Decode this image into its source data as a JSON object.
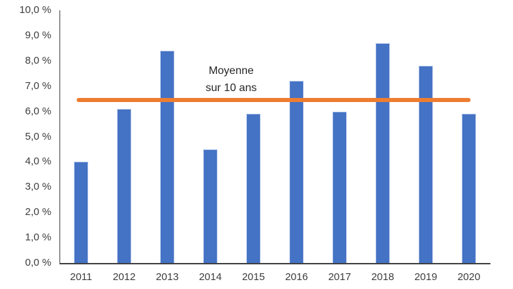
{
  "colors": {
    "background": "#ffffff",
    "bar_fill": "#4472C4",
    "bar_edge": "#bdcdee",
    "reference_line": "#ED7D31",
    "axis_line": "#404040",
    "tick_text": "#3d3d3d",
    "annotation_text": "#262626"
  },
  "annotation": {
    "line1": "Moyenne",
    "line2": "sur 10 ans"
  },
  "chart_data": {
    "type": "bar",
    "title": "",
    "xlabel": "",
    "ylabel": "",
    "categories": [
      "2011",
      "2012",
      "2013",
      "2014",
      "2015",
      "2016",
      "2017",
      "2018",
      "2019",
      "2020"
    ],
    "values": [
      4.0,
      6.1,
      8.4,
      4.5,
      5.9,
      7.2,
      6.0,
      8.7,
      7.8,
      5.9
    ],
    "unit": "%",
    "ylim": [
      0,
      10
    ],
    "ytick_step": 1.0,
    "ytick_labels": [
      "0,0 %",
      "1,0 %",
      "2,0 %",
      "3,0 %",
      "4,0 %",
      "5,0 %",
      "6,0 %",
      "7,0 %",
      "8,0 %",
      "9,0 %",
      "10,0 %"
    ],
    "grid": false,
    "legend": "none",
    "reference_line": {
      "label": "Moyenne sur 10 ans",
      "value": 6.45
    }
  }
}
